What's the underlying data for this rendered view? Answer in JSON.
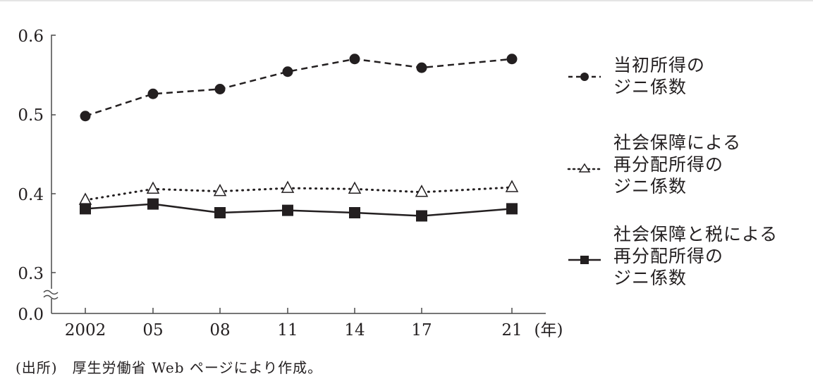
{
  "chart_data": {
    "type": "line",
    "title": "",
    "xlabel": "(年)",
    "ylabel": "",
    "categories": [
      "2002",
      "05",
      "08",
      "11",
      "14",
      "17",
      "21"
    ],
    "x": [
      2002,
      2005,
      2008,
      2011,
      2014,
      2017,
      2021
    ],
    "y_ticks": [
      "0.6",
      "0.5",
      "0.4",
      "0.3",
      "0.0"
    ],
    "ylim": [
      0.0,
      0.6
    ],
    "axis_break": "between 0.0 and 0.3",
    "grid": false,
    "legend_position": "right",
    "series": [
      {
        "name": "当初所得のジニ係数",
        "marker": "filled-circle",
        "line": "dashed",
        "values": [
          0.498,
          0.526,
          0.532,
          0.554,
          0.57,
          0.559,
          0.57
        ]
      },
      {
        "name": "社会保障による再分配所得のジニ係数",
        "marker": "open-triangle",
        "line": "dotted",
        "values": [
          0.392,
          0.406,
          0.403,
          0.407,
          0.406,
          0.402,
          0.408
        ]
      },
      {
        "name": "社会保障と税による再分配所得のジニ係数",
        "marker": "filled-square",
        "line": "solid",
        "values": [
          0.381,
          0.387,
          0.376,
          0.379,
          0.376,
          0.372,
          0.381
        ]
      }
    ]
  },
  "axis": {
    "y_labels": [
      "0.6",
      "0.5",
      "0.4",
      "0.3",
      "0.0"
    ],
    "x_labels": [
      "2002",
      "05",
      "08",
      "11",
      "14",
      "17",
      "21"
    ],
    "x_unit": "(年)"
  },
  "legend": {
    "items": [
      {
        "lines": [
          "当初所得の",
          "ジニ係数"
        ]
      },
      {
        "lines": [
          "社会保障による",
          "再分配所得の",
          "ジニ係数"
        ]
      },
      {
        "lines": [
          "社会保障と税による",
          "再分配所得の",
          "ジニ係数"
        ]
      }
    ]
  },
  "source": "(出所)　厚生労働省 Web ページにより作成。",
  "colors": {
    "ink": "#231f20",
    "axis": "#4a4a4a",
    "border": "#e4e4e4"
  }
}
